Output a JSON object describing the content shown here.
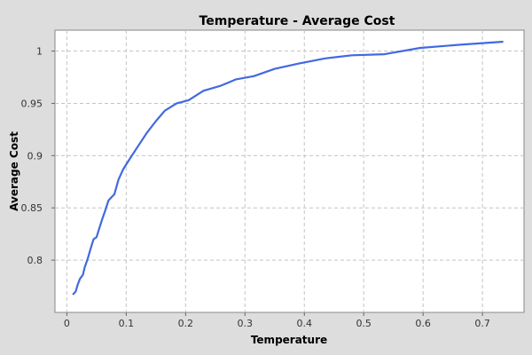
{
  "chart_data": {
    "type": "line",
    "title": "Temperature - Average Cost",
    "xlabel": "Temperature",
    "ylabel": "Average Cost",
    "xlim": [
      -0.02,
      0.77
    ],
    "ylim": [
      0.75,
      1.02
    ],
    "x_ticks": [
      0,
      0.1,
      0.2,
      0.3,
      0.4,
      0.5,
      0.6,
      0.7
    ],
    "x_tick_labels": [
      "0",
      "0.1",
      "0.2",
      "0.3",
      "0.4",
      "0.5",
      "0.6",
      "0.7"
    ],
    "y_ticks": [
      0.8,
      0.85,
      0.9,
      0.95,
      1.0
    ],
    "y_tick_labels": [
      "0.8",
      "0.85",
      "0.9",
      "0.95",
      "1"
    ],
    "grid": true,
    "series": [
      {
        "color": "#4169e1",
        "x": [
          0.01,
          0.015,
          0.018,
          0.022,
          0.027,
          0.03,
          0.035,
          0.04,
          0.045,
          0.05,
          0.055,
          0.06,
          0.065,
          0.07,
          0.075,
          0.08,
          0.087,
          0.095,
          0.105,
          0.12,
          0.135,
          0.15,
          0.165,
          0.185,
          0.205,
          0.23,
          0.26,
          0.285,
          0.315,
          0.35,
          0.39,
          0.435,
          0.48,
          0.535,
          0.595,
          0.66,
          0.735
        ],
        "y": [
          0.767,
          0.77,
          0.776,
          0.782,
          0.786,
          0.793,
          0.801,
          0.811,
          0.82,
          0.822,
          0.831,
          0.84,
          0.848,
          0.857,
          0.86,
          0.863,
          0.877,
          0.887,
          0.896,
          0.909,
          0.922,
          0.933,
          0.943,
          0.95,
          0.953,
          0.962,
          0.967,
          0.973,
          0.976,
          0.983,
          0.988,
          0.993,
          0.996,
          0.997,
          1.003,
          1.006,
          1.009
        ]
      }
    ]
  }
}
